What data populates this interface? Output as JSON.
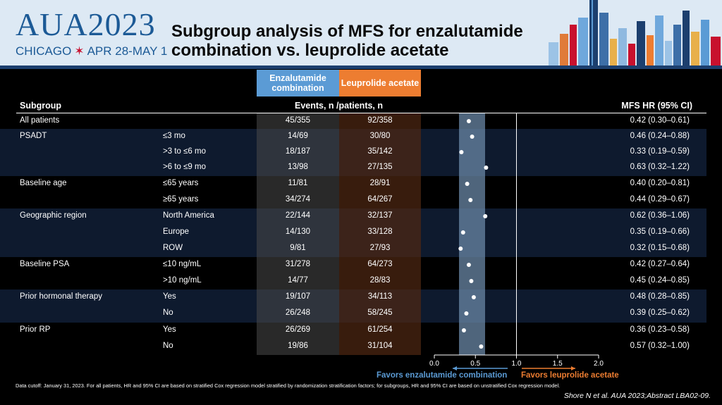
{
  "header": {
    "logo_main": "AUA2023",
    "logo_city": "CHICAGO",
    "logo_dates": "APR 28-MAY 1",
    "title_line1": "Subgroup analysis of MFS for enzalutamide",
    "title_line2": "combination vs. leuprolide acetate"
  },
  "columns": {
    "enz_head": "Enzalutamide combination",
    "leu_head": "Leuprolide acetate",
    "subgroup": "Subgroup",
    "events": "Events, n /patients, n",
    "hr": "MFS HR (95% CI)"
  },
  "rows": [
    {
      "subgroup": "All patients",
      "level": "",
      "enz": "45/355",
      "leu": "92/358",
      "hr_text": "0.42 (0.30–0.61)",
      "hr": 0.42
    },
    {
      "subgroup": "PSADT",
      "level": "≤3 mo",
      "enz": "14/69",
      "leu": "30/80",
      "hr_text": "0.46 (0.24–0.88)",
      "hr": 0.46
    },
    {
      "subgroup": "",
      "level": ">3 to ≤6 mo",
      "enz": "18/187",
      "leu": "35/142",
      "hr_text": "0.33 (0.19–0.59)",
      "hr": 0.33
    },
    {
      "subgroup": "",
      "level": ">6 to ≤9 mo",
      "enz": "13/98",
      "leu": "27/135",
      "hr_text": "0.63 (0.32–1.22)",
      "hr": 0.63
    },
    {
      "subgroup": "Baseline age",
      "level": "≤65 years",
      "enz": "11/81",
      "leu": "28/91",
      "hr_text": "0.40 (0.20–0.81)",
      "hr": 0.4
    },
    {
      "subgroup": "",
      "level": "≥65 years",
      "enz": "34/274",
      "leu": "64/267",
      "hr_text": "0.44 (0.29–0.67)",
      "hr": 0.44
    },
    {
      "subgroup": "Geographic region",
      "level": "North America",
      "enz": "22/144",
      "leu": "32/137",
      "hr_text": "0.62 (0.36–1.06)",
      "hr": 0.62
    },
    {
      "subgroup": "",
      "level": "Europe",
      "enz": "14/130",
      "leu": "33/128",
      "hr_text": "0.35 (0.19–0.66)",
      "hr": 0.35
    },
    {
      "subgroup": "",
      "level": "ROW",
      "enz": "9/81",
      "leu": "27/93",
      "hr_text": "0.32 (0.15–0.68)",
      "hr": 0.32
    },
    {
      "subgroup": "Baseline PSA",
      "level": "≤10 ng/mL",
      "enz": "31/278",
      "leu": "64/273",
      "hr_text": "0.42 (0.27–0.64)",
      "hr": 0.42
    },
    {
      "subgroup": "",
      "level": ">10 ng/mL",
      "enz": "14/77",
      "leu": "28/83",
      "hr_text": "0.45 (0.24–0.85)",
      "hr": 0.45
    },
    {
      "subgroup": "Prior hormonal therapy",
      "level": "Yes",
      "enz": "19/107",
      "leu": "34/113",
      "hr_text": "0.48 (0.28–0.85)",
      "hr": 0.48
    },
    {
      "subgroup": "",
      "level": "No",
      "enz": "26/248",
      "leu": "58/245",
      "hr_text": "0.39 (0.25–0.62)",
      "hr": 0.39
    },
    {
      "subgroup": "Prior RP",
      "level": "Yes",
      "enz": "26/269",
      "leu": "61/254",
      "hr_text": "0.36 (0.23–0.58)",
      "hr": 0.36
    },
    {
      "subgroup": "",
      "level": "No",
      "enz": "19/86",
      "leu": "31/104",
      "hr_text": "0.57 (0.32–1.00)",
      "hr": 0.57
    }
  ],
  "axis": {
    "ticks": [
      "0.0",
      "0.5",
      "1.0",
      "1.5",
      "2.0"
    ],
    "tick_values": [
      0,
      0.5,
      1.0,
      1.5,
      2.0
    ],
    "min": 0,
    "max": 2.0,
    "reference": 1.0,
    "ci_band": [
      0.3,
      0.61
    ]
  },
  "favor_enz": "Favors enzalutamide combination",
  "favor_leu": "Favors leuprolide acetate",
  "footnote": "Data cutoff: January 31, 2023. For all patients, HR and 95% CI are based on stratified Cox regression model stratified by randomization stratification factors; for subgroups, HR and 95% CI are based on unstratified Cox regression model.",
  "citation": "Shore N et al. AUA 2023;Abstract LBA02-09.",
  "colors": {
    "enz": "#5b9bd5",
    "leu": "#ed7d31",
    "band": "#0e1a2e",
    "header_bg": "#dde9f4",
    "logo": "#1c5a96"
  }
}
